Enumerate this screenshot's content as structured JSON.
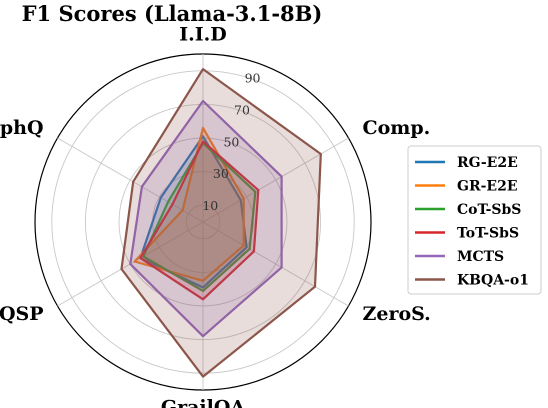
{
  "chart_data": {
    "type": "radar",
    "title": "F1 Scores (Llama-3.1-8B)",
    "axes": [
      "I.I.D",
      "Comp.",
      "ZeroS.",
      "GrailQA",
      "WebQSP",
      "GraphQ"
    ],
    "radial_ticks": [
      "10",
      "30",
      "50",
      "70",
      "90"
    ],
    "radial_tick_values": [
      10,
      30,
      50,
      70,
      90
    ],
    "rlim": [
      0,
      100
    ],
    "grid": true,
    "legend_position": "right",
    "series": [
      {
        "name": "RG-E2E",
        "color": "#1f77b4",
        "values": [
          51,
          26,
          30,
          39,
          43,
          29
        ]
      },
      {
        "name": "GR-E2E",
        "color": "#ff7f0e",
        "values": [
          56,
          28,
          28,
          35,
          47,
          14
        ]
      },
      {
        "name": "CoT-SbS",
        "color": "#2ca02c",
        "values": [
          47,
          36,
          32,
          41,
          41,
          24
        ]
      },
      {
        "name": "ToT-SbS",
        "color": "#d62728",
        "values": [
          48,
          38,
          35,
          46,
          43,
          21
        ]
      },
      {
        "name": "MCTS",
        "color": "#9467bd",
        "values": [
          72,
          54,
          54,
          68,
          50,
          42
        ]
      },
      {
        "name": "KBQA-o1",
        "color": "#8c564b",
        "values": [
          91,
          81,
          77,
          92,
          56,
          48
        ]
      }
    ]
  }
}
